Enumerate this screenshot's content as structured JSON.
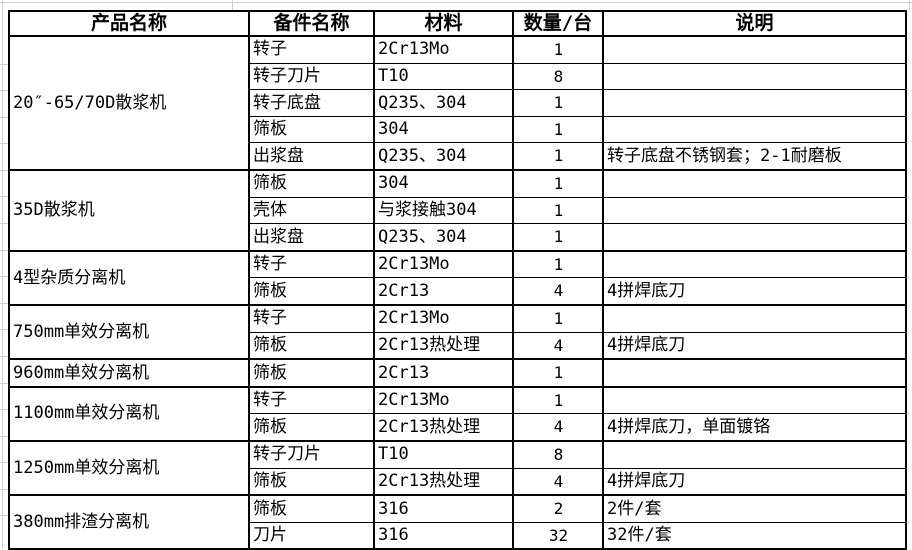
{
  "colors": {
    "background": "#ffffff",
    "table_border": "#000000",
    "text": "#000000",
    "margin_gridline": "#d0d0d0"
  },
  "table": {
    "columns": [
      "产品名称",
      "备件名称",
      "材料",
      "数量/台",
      "说明"
    ],
    "groups": [
      {
        "product": "20″-65/70D散浆机",
        "parts": [
          {
            "name": "转子",
            "material": "2Cr13Mo",
            "qty": "1",
            "note": ""
          },
          {
            "name": "转子刀片",
            "material": "T10",
            "qty": "8",
            "note": ""
          },
          {
            "name": "转子底盘",
            "material": "Q235、304",
            "qty": "1",
            "note": ""
          },
          {
            "name": "筛板",
            "material": "304",
            "qty": "1",
            "note": ""
          },
          {
            "name": "出浆盘",
            "material": "Q235、304",
            "qty": "1",
            "note": "转子底盘不锈钢套；2-1耐磨板"
          }
        ]
      },
      {
        "product": "35D散浆机",
        "parts": [
          {
            "name": "筛板",
            "material": "304",
            "qty": "1",
            "note": ""
          },
          {
            "name": "壳体",
            "material": "与浆接触304",
            "qty": "1",
            "note": ""
          },
          {
            "name": "出浆盘",
            "material": "Q235、304",
            "qty": "1",
            "note": ""
          }
        ]
      },
      {
        "product": "4型杂质分离机",
        "parts": [
          {
            "name": "转子",
            "material": "2Cr13Mo",
            "qty": "1",
            "note": ""
          },
          {
            "name": "筛板",
            "material": "2Cr13",
            "qty": "4",
            "note": "4拼焊底刀"
          }
        ]
      },
      {
        "product": "750mm单效分离机",
        "parts": [
          {
            "name": "转子",
            "material": "2Cr13Mo",
            "qty": "1",
            "note": ""
          },
          {
            "name": "筛板",
            "material": "2Cr13热处理",
            "qty": "4",
            "note": "4拼焊底刀"
          }
        ]
      },
      {
        "product": "960mm单效分离机",
        "parts": [
          {
            "name": "筛板",
            "material": "2Cr13",
            "qty": "1",
            "note": ""
          }
        ]
      },
      {
        "product": "1100mm单效分离机",
        "parts": [
          {
            "name": "转子",
            "material": "2Cr13Mo",
            "qty": "1",
            "note": ""
          },
          {
            "name": "筛板",
            "material": "2Cr13热处理",
            "qty": "4",
            "note": "4拼焊底刀，单面镀铬"
          }
        ]
      },
      {
        "product": "1250mm单效分离机",
        "parts": [
          {
            "name": "转子刀片",
            "material": "T10",
            "qty": "8",
            "note": ""
          },
          {
            "name": "筛板",
            "material": "2Cr13热处理",
            "qty": "4",
            "note": "4拼焊底刀"
          }
        ]
      },
      {
        "product": "380mm排渣分离机",
        "parts": [
          {
            "name": "筛板",
            "material": "316",
            "qty": "2",
            "note": "2件/套"
          },
          {
            "name": "刀片",
            "material": "316",
            "qty": "32",
            "note": "32件/套"
          }
        ]
      }
    ]
  }
}
